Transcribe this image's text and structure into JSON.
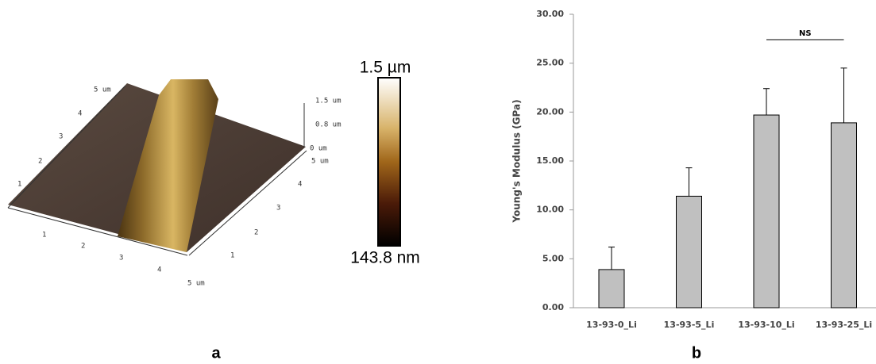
{
  "panel_a": {
    "label": "a",
    "left_axis": [
      "1",
      "2",
      "3",
      "4",
      "5 um"
    ],
    "front_axis": [
      "1",
      "2",
      "3",
      "4",
      "5 um"
    ],
    "right_axis": [
      "1",
      "2",
      "3",
      "4",
      "5 um"
    ],
    "z_axis": [
      "1.5 um",
      "0.8 um",
      "0 um"
    ],
    "colorbar_top": "1.5 µm",
    "colorbar_bottom": "143.8 nm"
  },
  "chart_data": {
    "type": "bar",
    "label": "b",
    "y_label": "Young's Modulus (GPa)",
    "categories": [
      "13-93-0_Li",
      "13-93-5_Li",
      "13-93-10_Li",
      "13-93-25_Li"
    ],
    "values": [
      3.9,
      11.4,
      19.7,
      18.9
    ],
    "errors": [
      2.3,
      2.9,
      2.7,
      5.6
    ],
    "color": "#c0c0c0",
    "annotation": "NS",
    "ylim": [
      0,
      30
    ],
    "yticks": [
      {
        "value": 0,
        "label": "0.00"
      },
      {
        "value": 5,
        "label": "5.00"
      },
      {
        "value": 10,
        "label": "10.00"
      },
      {
        "value": 15,
        "label": "15.00"
      },
      {
        "value": 20,
        "label": "20.00"
      },
      {
        "value": 25,
        "label": "25.00"
      },
      {
        "value": 30,
        "label": "30.00"
      }
    ]
  }
}
